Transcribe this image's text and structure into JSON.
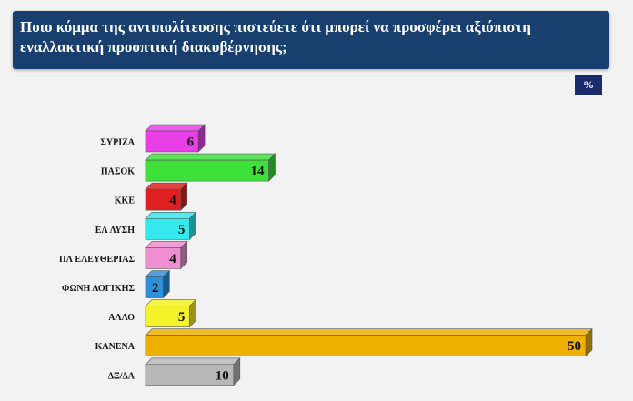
{
  "header": {
    "title": "Ποιο κόμμα της αντιπολίτευσης πιστεύετε ότι μπορεί να προσφέρει αξιόπιστη εναλλακτική προοπτική διακυβέρνησης;"
  },
  "unit_badge": "%",
  "chart_data": {
    "type": "bar",
    "orientation": "horizontal",
    "title": "Ποιο κόμμα της αντιπολίτευσης πιστεύετε ότι μπορεί να προσφέρει αξιόπιστη εναλλακτική προοπτική διακυβέρνησης;",
    "unit": "%",
    "categories": [
      "ΣΥΡΙΖΑ",
      "ΠΑΣΟΚ",
      "ΚΚΕ",
      "ΕΛ ΛΥΣΗ",
      "ΠΛ ΕΛΕΥΘΕΡΙΑΣ",
      "ΦΩΝΗ ΛΟΓΙΚΗΣ",
      "ΑΛΛΟ",
      "ΚΑΝΕΝΑ",
      "ΔΞ/ΔΑ"
    ],
    "values": [
      6,
      14,
      4,
      5,
      4,
      2,
      5,
      50,
      10
    ],
    "colors": [
      "#e83fe6",
      "#3ee03a",
      "#e02020",
      "#35e8ee",
      "#ef8ed2",
      "#2f8fd8",
      "#f4f228",
      "#f0b000",
      "#b8b8b8"
    ],
    "xlim": [
      0,
      50
    ],
    "grid": false,
    "legend": "none"
  }
}
